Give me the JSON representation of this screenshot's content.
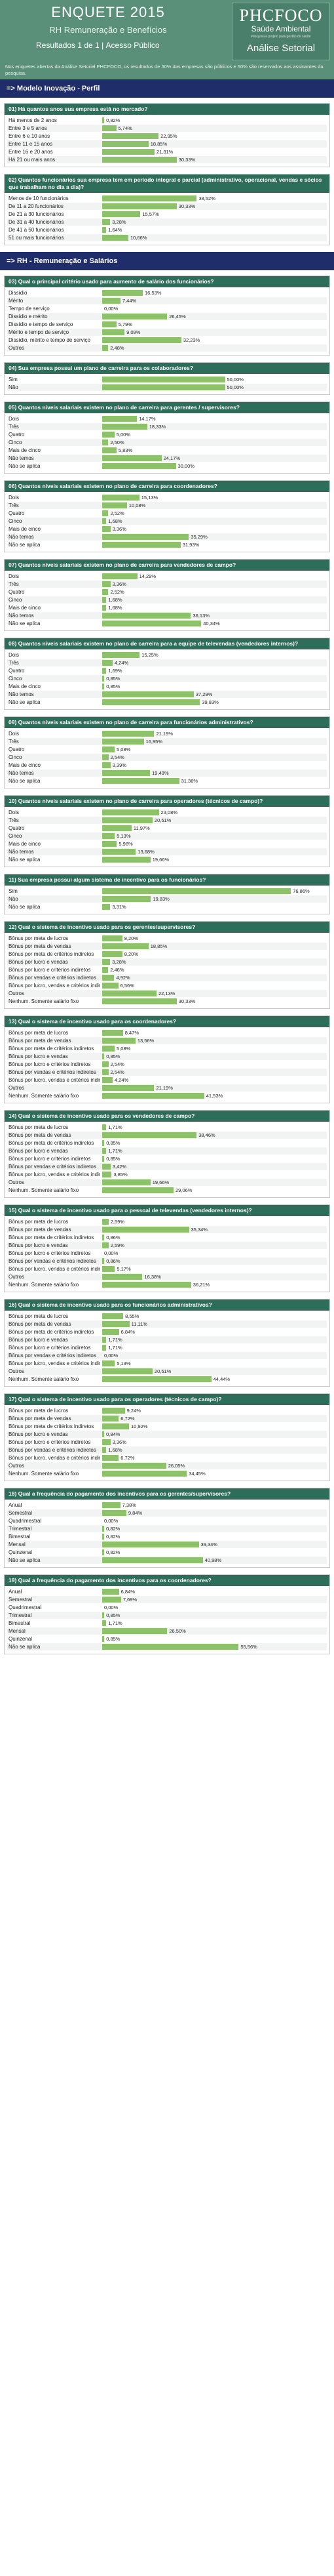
{
  "header": {
    "title": "ENQUETE 2015",
    "subtitle": "RH Remuneração e Benefícios",
    "results_label": "Resultados 1 de 1",
    "access_label": "Acesso Público",
    "note": "Nos enquetes abertas da Análise Setorial PHCFOCO, os resultados de 50% das empresas são públicos e 50% são reservados aos assinantes da pesquisa.",
    "colors": {
      "header_bg": "#5a8f7a",
      "section_bg": "#1f2d6b",
      "question_bg": "#2f6d5b",
      "bar": "#8dc26b"
    }
  },
  "logo": {
    "brand": "PHCFOCO",
    "brand_sub": "Saúde Ambiental",
    "tagline": "Pesquisa e projeto para gestão de saúde",
    "sector": "Análise Setorial"
  },
  "sections": [
    {
      "header": "=> Modelo Inovação - Perfil",
      "questions": [
        {
          "title": "01) Há quantos anos sua empresa está no mercado?",
          "rows": [
            {
              "label": "Há menos de 2 anos",
              "value": 0.82
            },
            {
              "label": "Entre 3 e 5 anos",
              "value": 5.74
            },
            {
              "label": "Entre 6 e 10 anos",
              "value": 22.95
            },
            {
              "label": "Entre 11 e 15 anos",
              "value": 18.85
            },
            {
              "label": "Entre 16 e 20 anos",
              "value": 21.31
            },
            {
              "label": "Há 21 ou mais anos",
              "value": 30.33
            }
          ]
        },
        {
          "title": "02) Quantos funcionários sua empresa tem em período integral e parcial (administrativo, operacional, vendas e sócios que trabalham no dia a dia)?",
          "rows": [
            {
              "label": "Menos de 10 funcionários",
              "value": 38.52
            },
            {
              "label": "De 11 a 20 funcionários",
              "value": 30.33
            },
            {
              "label": "De 21 a 30 funcionários",
              "value": 15.57
            },
            {
              "label": "De 31 a 40 funcionários",
              "value": 3.28
            },
            {
              "label": "De 41 a 50 funcionários",
              "value": 1.64
            },
            {
              "label": "51 ou mais funcionários",
              "value": 10.66
            }
          ]
        }
      ]
    },
    {
      "header": "=> RH - Remuneração e Salários",
      "questions": [
        {
          "title": "03) Qual o principal critério usado para aumento de salário dos funcionários?",
          "rows": [
            {
              "label": "Dissídio",
              "value": 16.53
            },
            {
              "label": "Mérito",
              "value": 7.44
            },
            {
              "label": "Tempo de serviço",
              "value": 0.0
            },
            {
              "label": "Dissídio e mérito",
              "value": 26.45
            },
            {
              "label": "Dissídio e tempo de serviço",
              "value": 5.79
            },
            {
              "label": "Mérito e tempo de serviço",
              "value": 9.09
            },
            {
              "label": "Dissídio, mérito e tempo de serviço",
              "value": 32.23
            },
            {
              "label": "Outros",
              "value": 2.48
            }
          ]
        },
        {
          "title": "04) Sua empresa possui um plano de carreira para os colaboradores?",
          "rows": [
            {
              "label": "Sim",
              "value": 50.0
            },
            {
              "label": "Não",
              "value": 50.0
            }
          ]
        },
        {
          "title": "05) Quantos níveis salariais existem no plano de carreira para gerentes / supervisores?",
          "rows": [
            {
              "label": "Dois",
              "value": 14.17
            },
            {
              "label": "Três",
              "value": 18.33
            },
            {
              "label": "Quatro",
              "value": 5.0
            },
            {
              "label": "Cinco",
              "value": 2.5
            },
            {
              "label": "Mais de cinco",
              "value": 5.83
            },
            {
              "label": "Não temos",
              "value": 24.17
            },
            {
              "label": "Não se aplica",
              "value": 30.0
            }
          ]
        },
        {
          "title": "06) Quantos níveis salariais existem no plano de carreira para coordenadores?",
          "rows": [
            {
              "label": "Dois",
              "value": 15.13
            },
            {
              "label": "Três",
              "value": 10.08
            },
            {
              "label": "Quatro",
              "value": 2.52
            },
            {
              "label": "Cinco",
              "value": 1.68
            },
            {
              "label": "Mais de cinco",
              "value": 3.36
            },
            {
              "label": "Não temos",
              "value": 35.29
            },
            {
              "label": "Não se aplica",
              "value": 31.93
            }
          ]
        },
        {
          "title": "07) Quantos níveis salariais existem no plano de carreira para vendedores de campo?",
          "rows": [
            {
              "label": "Dois",
              "value": 14.29
            },
            {
              "label": "Três",
              "value": 3.36
            },
            {
              "label": "Quatro",
              "value": 2.52
            },
            {
              "label": "Cinco",
              "value": 1.68
            },
            {
              "label": "Mais de cinco",
              "value": 1.68
            },
            {
              "label": "Não temos",
              "value": 36.13
            },
            {
              "label": "Não se aplica",
              "value": 40.34
            }
          ]
        },
        {
          "title": "08) Quantos níveis salariais existem no plano de carreira para a equipe de televendas (vendedores internos)?",
          "rows": [
            {
              "label": "Dois",
              "value": 15.25
            },
            {
              "label": "Três",
              "value": 4.24
            },
            {
              "label": "Quatro",
              "value": 1.69
            },
            {
              "label": "Cinco",
              "value": 0.85
            },
            {
              "label": "Mais de cinco",
              "value": 0.85
            },
            {
              "label": "Não temos",
              "value": 37.29
            },
            {
              "label": "Não se aplica",
              "value": 39.83
            }
          ]
        },
        {
          "title": "09) Quantos níveis salariais existem no plano de carreira para funcionários administrativos?",
          "rows": [
            {
              "label": "Dois",
              "value": 21.19
            },
            {
              "label": "Três",
              "value": 16.95
            },
            {
              "label": "Quatro",
              "value": 5.08
            },
            {
              "label": "Cinco",
              "value": 2.54
            },
            {
              "label": "Mais de cinco",
              "value": 3.39
            },
            {
              "label": "Não temos",
              "value": 19.49
            },
            {
              "label": "Não se aplica",
              "value": 31.36
            }
          ]
        },
        {
          "title": "10) Quantos níveis salariais existem no plano de carreira para operadores (técnicos de campo)?",
          "rows": [
            {
              "label": "Dois",
              "value": 23.08
            },
            {
              "label": "Três",
              "value": 20.51
            },
            {
              "label": "Quatro",
              "value": 11.97
            },
            {
              "label": "Cinco",
              "value": 5.13
            },
            {
              "label": "Mais de cinco",
              "value": 5.98
            },
            {
              "label": "Não temos",
              "value": 13.68
            },
            {
              "label": "Não se aplica",
              "value": 19.66
            }
          ]
        },
        {
          "title": "11) Sua empresa possui algum sistema de incentivo para os funcionários?",
          "rows": [
            {
              "label": "Sim",
              "value": 76.86
            },
            {
              "label": "Não",
              "value": 19.83
            },
            {
              "label": "Não se aplica",
              "value": 3.31
            }
          ]
        },
        {
          "title": "12) Qual o sistema de incentivo usado para os gerentes/supervisores?",
          "rows": [
            {
              "label": "Bônus por meta de lucros",
              "value": 8.2
            },
            {
              "label": "Bônus por meta de vendas",
              "value": 18.85
            },
            {
              "label": "Bônus por meta de critérios indiretos",
              "value": 8.2
            },
            {
              "label": "Bônus por lucro e vendas",
              "value": 3.28
            },
            {
              "label": "Bônus por lucro e critérios indiretos",
              "value": 2.46
            },
            {
              "label": "Bônus por vendas e critérios indiretos",
              "value": 4.92
            },
            {
              "label": "Bônus por lucro, vendas e critérios indiretos",
              "value": 6.56
            },
            {
              "label": "Outros",
              "value": 22.13
            },
            {
              "label": "Nenhum. Somente salário fixo",
              "value": 30.33
            }
          ]
        },
        {
          "title": "13) Qual o sistema de incentivo usado para os coordenadores?",
          "rows": [
            {
              "label": "Bônus por meta de lucros",
              "value": 8.47
            },
            {
              "label": "Bônus por meta de vendas",
              "value": 13.56
            },
            {
              "label": "Bônus por meta de critérios indiretos",
              "value": 5.08
            },
            {
              "label": "Bônus por lucro e vendas",
              "value": 0.85
            },
            {
              "label": "Bônus por lucro e critérios indiretos",
              "value": 2.54
            },
            {
              "label": "Bônus por vendas e critérios indiretos",
              "value": 2.54
            },
            {
              "label": "Bônus por lucro, vendas e critérios indiretos",
              "value": 4.24
            },
            {
              "label": "Outros",
              "value": 21.19
            },
            {
              "label": "Nenhum. Somente salário fixo",
              "value": 41.53
            }
          ]
        },
        {
          "title": "14) Qual o sistema de incentivo usado para os vendedores de campo?",
          "rows": [
            {
              "label": "Bônus por meta de lucros",
              "value": 1.71
            },
            {
              "label": "Bônus por meta de vendas",
              "value": 38.46
            },
            {
              "label": "Bônus por meta de critérios indiretos",
              "value": 0.85
            },
            {
              "label": "Bônus por lucro e vendas",
              "value": 1.71
            },
            {
              "label": "Bônus por lucro e critérios indiretos",
              "value": 0.85
            },
            {
              "label": "Bônus por vendas e critérios indiretos",
              "value": 3.42
            },
            {
              "label": "Bônus por lucro, vendas e critérios indiretos",
              "value": 3.85
            },
            {
              "label": "Outros",
              "value": 19.66
            },
            {
              "label": "Nenhum. Somente salário fixo",
              "value": 29.06
            }
          ]
        },
        {
          "title": "15) Qual o sistema de incentivo usado para o pessoal de televendas (vendedores internos)?",
          "rows": [
            {
              "label": "Bônus por meta de lucros",
              "value": 2.59
            },
            {
              "label": "Bônus por meta de vendas",
              "value": 35.34
            },
            {
              "label": "Bônus por meta de critérios indiretos",
              "value": 0.86
            },
            {
              "label": "Bônus por lucro e vendas",
              "value": 2.59
            },
            {
              "label": "Bônus por lucro e critérios indiretos",
              "value": 0.0
            },
            {
              "label": "Bônus por vendas e critérios indiretos",
              "value": 0.86
            },
            {
              "label": "Bônus por lucro, vendas e critérios indiretos",
              "value": 5.17
            },
            {
              "label": "Outros",
              "value": 16.38
            },
            {
              "label": "Nenhum. Somente salário fixo",
              "value": 36.21
            }
          ]
        },
        {
          "title": "16) Qual o sistema de incentivo usado para os funcionários administrativos?",
          "rows": [
            {
              "label": "Bônus por meta de lucros",
              "value": 8.55
            },
            {
              "label": "Bônus por meta de vendas",
              "value": 11.11
            },
            {
              "label": "Bônus por meta de critérios indiretos",
              "value": 6.84
            },
            {
              "label": "Bônus por lucro e vendas",
              "value": 1.71
            },
            {
              "label": "Bônus por lucro e critérios indiretos",
              "value": 1.71
            },
            {
              "label": "Bônus por vendas e critérios indiretos",
              "value": 0.0
            },
            {
              "label": "Bônus por lucro, vendas e critérios indiretos",
              "value": 5.13
            },
            {
              "label": "Outros",
              "value": 20.51
            },
            {
              "label": "Nenhum. Somente salário fixo",
              "value": 44.44
            }
          ]
        },
        {
          "title": "17) Qual o sistema de incentivo usado para os operadores (técnicos de campo)?",
          "rows": [
            {
              "label": "Bônus por meta de lucros",
              "value": 9.24
            },
            {
              "label": "Bônus por meta de vendas",
              "value": 6.72
            },
            {
              "label": "Bônus por meta de critérios indiretos",
              "value": 10.92
            },
            {
              "label": "Bônus por lucro e vendas",
              "value": 0.84
            },
            {
              "label": "Bônus por lucro e critérios indiretos",
              "value": 3.36
            },
            {
              "label": "Bônus por vendas e critérios indiretos",
              "value": 1.68
            },
            {
              "label": "Bônus por lucro, vendas e critérios indiretos",
              "value": 6.72
            },
            {
              "label": "Outros",
              "value": 26.05
            },
            {
              "label": "Nenhum. Somente salário fixo",
              "value": 34.45
            }
          ]
        },
        {
          "title": "18) Qual a frequência do pagamento dos incentivos para os gerentes/supervisores?",
          "rows": [
            {
              "label": "Anual",
              "value": 7.38
            },
            {
              "label": "Semestral",
              "value": 9.84
            },
            {
              "label": "Quadrimestral",
              "value": 0.0
            },
            {
              "label": "Trimestral",
              "value": 0.82
            },
            {
              "label": "Bimestral",
              "value": 0.82
            },
            {
              "label": "Mensal",
              "value": 39.34
            },
            {
              "label": "Quinzenal",
              "value": 0.82
            },
            {
              "label": "Não se aplica",
              "value": 40.98
            }
          ]
        },
        {
          "title": "19) Qual a frequência do pagamento dos incentivos para os coordenadores?",
          "rows": [
            {
              "label": "Anual",
              "value": 6.84
            },
            {
              "label": "Semestral",
              "value": 7.69
            },
            {
              "label": "Quadrimestral",
              "value": 0.0
            },
            {
              "label": "Trimestral",
              "value": 0.85
            },
            {
              "label": "Bimestral",
              "value": 1.71
            },
            {
              "label": "Mensal",
              "value": 26.5
            },
            {
              "label": "Quinzenal",
              "value": 0.85
            },
            {
              "label": "Não se aplica",
              "value": 55.56
            }
          ]
        }
      ]
    }
  ]
}
